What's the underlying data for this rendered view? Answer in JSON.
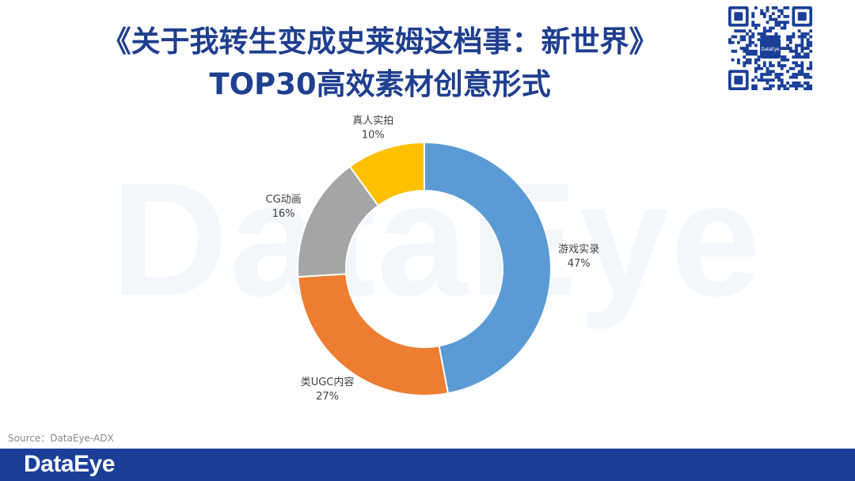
{
  "title": {
    "line1": "《关于我转生变成史莱姆这档事：新世界》",
    "line2": "TOP30高效素材创意形式"
  },
  "watermark": "DataEye",
  "qr_logo": "DataEye",
  "source": "Source：DataEye-ADX",
  "footer": {
    "logo": "DataEye"
  },
  "colors": {
    "title": "#1f3f8f",
    "footer": "#1a3f99"
  },
  "chart_data": {
    "type": "pie",
    "donut": true,
    "start_angle_deg": 0,
    "direction": "clockwise",
    "slices": [
      {
        "label": "游戏实录",
        "value": 47,
        "pct_label": "47%",
        "color": "#5b9bd5"
      },
      {
        "label": "类UGC内容",
        "value": 27,
        "pct_label": "27%",
        "color": "#ed7d31"
      },
      {
        "label": "CG动画",
        "value": 16,
        "pct_label": "16%",
        "color": "#a5a5a5"
      },
      {
        "label": "真人实拍",
        "value": 10,
        "pct_label": "10%",
        "color": "#ffc000"
      }
    ]
  }
}
